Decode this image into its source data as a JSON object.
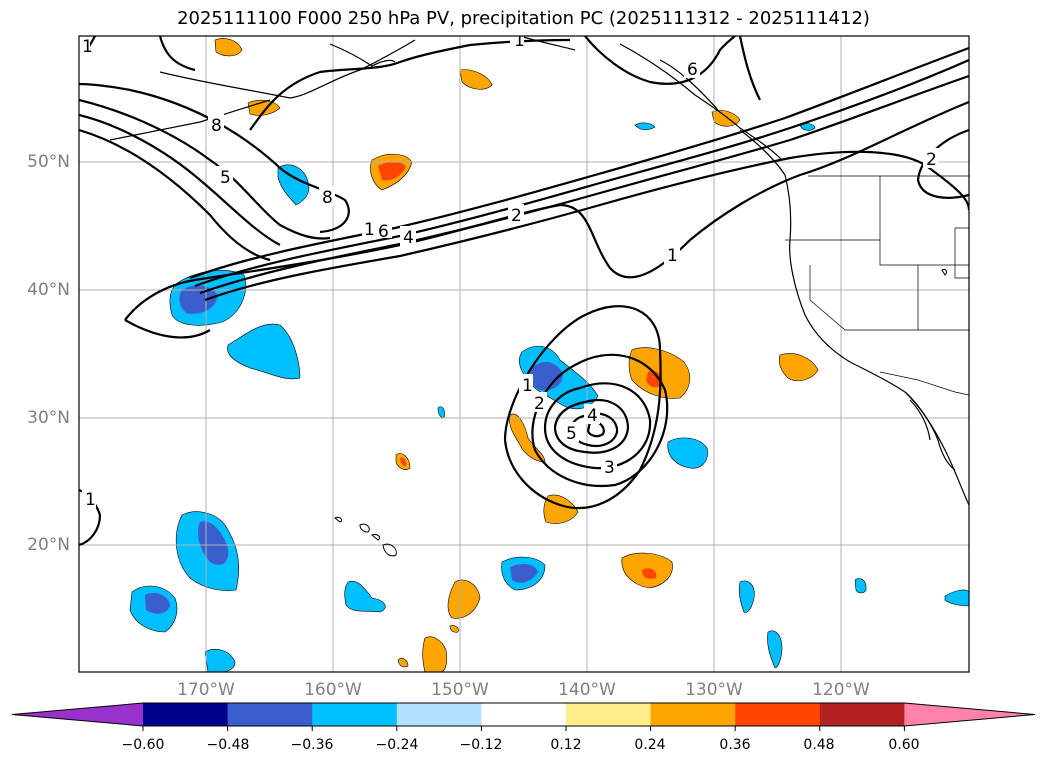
{
  "title": "2025111100 F000 250 hPa PV, precipitation PC (2025111312 - 2025111412)",
  "axes": {
    "lat_labels": [
      "50°N",
      "40°N",
      "30°N",
      "20°N"
    ],
    "lon_labels": [
      "170°W",
      "160°W",
      "150°W",
      "140°W",
      "130°W",
      "120°W"
    ]
  },
  "colorbar": {
    "tick_labels": [
      "−0.60",
      "−0.48",
      "−0.36",
      "−0.24",
      "−0.12",
      "0.12",
      "0.24",
      "0.36",
      "0.48",
      "0.60"
    ],
    "colors": [
      "#9932CC",
      "#00008B",
      "#3A5FCD",
      "#00BFFF",
      "#B0E2FF",
      "#FFFFFF",
      "#FFEC8B",
      "#FFA500",
      "#FF4500",
      "#B22222",
      "#FF82AB"
    ]
  },
  "contour_labels": {
    "nw_edge": "1",
    "top_edge": "1",
    "aleutian_8a": "8",
    "jet_5": "5",
    "jet_8b": "8",
    "jet_1": "1",
    "jet_6": "6",
    "jet_4": "4",
    "jet_2": "2",
    "east_1": "1",
    "bc_6": "6",
    "inland_2": "2",
    "low_1": "1",
    "low_2": "2",
    "low_4": "4",
    "low_5": "5",
    "low_3": "3",
    "sw_1": "1"
  }
}
